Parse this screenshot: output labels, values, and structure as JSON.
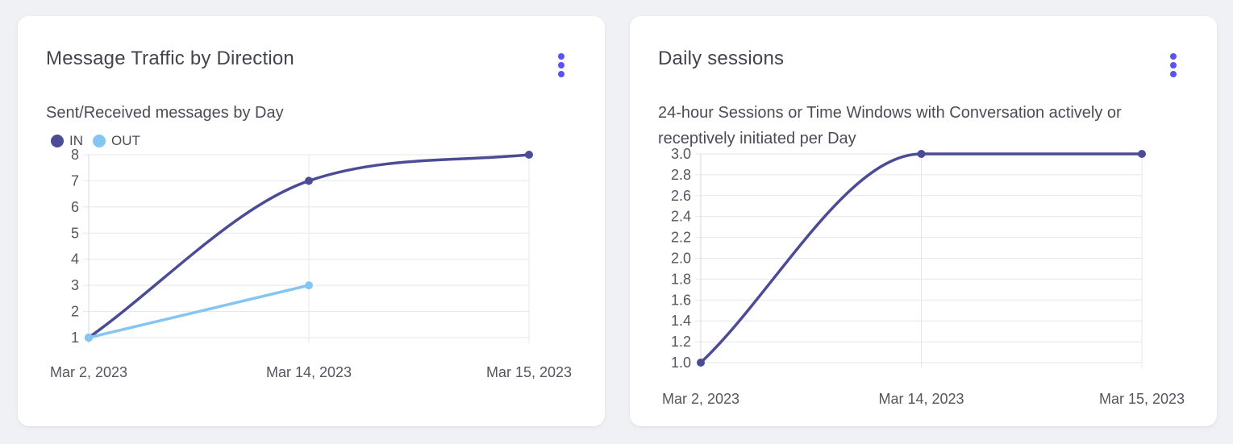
{
  "theme": {
    "accent": "#5a52f3",
    "page_background": "#f0f1f4",
    "card_background": "#ffffff",
    "grid_color": "#e6e7ea",
    "tick_text_color": "#55565e"
  },
  "cards": [
    {
      "title": "Message Traffic by Direction",
      "subtitle": "Sent/Received messages by Day",
      "menu_icon": "kebab-menu-icon"
    },
    {
      "title": "Daily sessions",
      "subtitle": "24-hour Sessions or Time Windows with Conversation actively or receptively initiated per Day",
      "menu_icon": "kebab-menu-icon"
    }
  ],
  "chart_data": [
    {
      "type": "line",
      "title": "Message Traffic by Direction",
      "subtitle": "Sent/Received messages by Day",
      "categories": [
        "Mar 2, 2023",
        "Mar 14, 2023",
        "Mar 15, 2023"
      ],
      "series": [
        {
          "name": "IN",
          "color": "#4b4b96",
          "values": [
            1,
            7,
            8
          ]
        },
        {
          "name": "OUT",
          "color": "#85c5f1",
          "values": [
            1,
            3,
            null
          ]
        }
      ],
      "ylim": [
        1,
        8
      ],
      "yticks": [
        "1",
        "2",
        "3",
        "4",
        "5",
        "6",
        "7",
        "8"
      ],
      "grid": true,
      "line_style": "smooth-monotone",
      "legend_position": "top-left",
      "legend": [
        "IN",
        "OUT"
      ]
    },
    {
      "type": "line",
      "title": "Daily sessions",
      "subtitle": "24-hour Sessions or Time Windows with Conversation actively or receptively initiated per Day",
      "categories": [
        "Mar 2, 2023",
        "Mar 14, 2023",
        "Mar 15, 2023"
      ],
      "series": [
        {
          "name": "Daily sessions",
          "color": "#4b4b96",
          "values": [
            1.0,
            3.0,
            3.0
          ]
        }
      ],
      "ylim": [
        1.0,
        3.0
      ],
      "yticks": [
        "1.0",
        "1.2",
        "1.4",
        "1.6",
        "1.8",
        "2.0",
        "2.2",
        "2.4",
        "2.6",
        "2.8",
        "3.0"
      ],
      "grid": true,
      "line_style": "smooth-monotone",
      "legend_position": "none"
    }
  ]
}
